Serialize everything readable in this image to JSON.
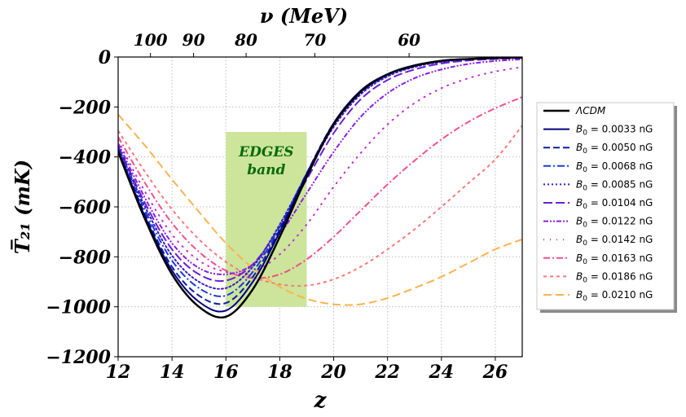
{
  "chart_data": {
    "type": "line",
    "xlabel": "z",
    "ylabel": "T̅₂₁ (mK)",
    "top_xlabel": "ν (MeV)",
    "xlim": [
      12,
      27
    ],
    "ylim": [
      -1200,
      0
    ],
    "xticks": [
      12,
      14,
      16,
      18,
      20,
      22,
      24,
      26
    ],
    "yticks": [
      0,
      -200,
      -400,
      -600,
      -800,
      -1000,
      -1200
    ],
    "ytick_labels": [
      "0",
      "−200",
      "−400",
      "−600",
      "−800",
      "−1000",
      "−1200"
    ],
    "top_ticks": [
      {
        "label": "100",
        "z": 13.2
      },
      {
        "label": "90",
        "z": 14.8
      },
      {
        "label": "80",
        "z": 16.75
      },
      {
        "label": "70",
        "z": 19.3
      },
      {
        "label": "60",
        "z": 22.8
      }
    ],
    "grid": true,
    "legend_position": "right outside",
    "band": {
      "label_line1": "EDGES",
      "label_line2": "band",
      "x_range": [
        16,
        19
      ],
      "y_range": [
        -1000,
        -300
      ],
      "color": "#cce59a",
      "text_color": "#0a6a0a"
    },
    "series": [
      {
        "name": "ΛCDM",
        "label_html": "ΛCDM",
        "color": "#000000",
        "dash": "solid",
        "width": 2.5,
        "x": [
          12,
          13,
          14,
          15,
          16,
          17,
          18,
          19,
          20,
          21,
          22,
          23,
          24,
          25,
          26,
          27
        ],
        "y": [
          -380,
          -650,
          -870,
          -1000,
          -1040,
          -930,
          -720,
          -480,
          -270,
          -140,
          -70,
          -35,
          -15,
          -8,
          -4,
          -2
        ]
      },
      {
        "name": "B0=0.0033 nG",
        "label_pre": "B",
        "label_sub": "0",
        "label_post": " = 0.0033 nG",
        "color": "#000080",
        "dash": "solid",
        "width": 2,
        "x": [
          12,
          13,
          14,
          15,
          16,
          17,
          18,
          19,
          20,
          21,
          22,
          23,
          24,
          25,
          26,
          27
        ],
        "y": [
          -375,
          -640,
          -855,
          -980,
          -1015,
          -900,
          -700,
          -470,
          -265,
          -135,
          -68,
          -33,
          -15,
          -8,
          -4,
          -2
        ]
      },
      {
        "name": "B0=0.0050 nG",
        "label_pre": "B",
        "label_sub": "0",
        "label_post": " = 0.0050 nG",
        "color": "#0b1fa6",
        "dash": "8,4",
        "width": 2,
        "x": [
          12,
          13,
          14,
          15,
          16,
          17,
          18,
          19,
          20,
          21,
          22,
          23,
          24,
          25,
          26,
          27
        ],
        "y": [
          -370,
          -630,
          -840,
          -955,
          -985,
          -880,
          -690,
          -465,
          -265,
          -138,
          -70,
          -35,
          -16,
          -8,
          -4,
          -2
        ]
      },
      {
        "name": "B0=0.0068 nG",
        "label_pre": "B",
        "label_sub": "0",
        "label_post": " = 0.0068 nG",
        "color": "#1a3cd8",
        "dash": "9,3,2,3",
        "width": 2,
        "x": [
          12,
          13,
          14,
          15,
          16,
          17,
          18,
          19,
          20,
          21,
          22,
          23,
          24,
          25,
          26,
          27
        ],
        "y": [
          -365,
          -615,
          -815,
          -925,
          -955,
          -860,
          -680,
          -465,
          -270,
          -143,
          -73,
          -37,
          -18,
          -9,
          -5,
          -2
        ]
      },
      {
        "name": "B0=0.0085 nG",
        "label_pre": "B",
        "label_sub": "0",
        "label_post": " = 0.0085 nG",
        "color": "#3a1cc8",
        "dash": "2,3",
        "width": 2,
        "x": [
          12,
          13,
          14,
          15,
          16,
          17,
          18,
          19,
          20,
          21,
          22,
          23,
          24,
          25,
          26,
          27
        ],
        "y": [
          -360,
          -600,
          -795,
          -900,
          -925,
          -840,
          -670,
          -470,
          -280,
          -150,
          -78,
          -40,
          -20,
          -10,
          -5,
          -3
        ]
      },
      {
        "name": "B0=0.0104 nG",
        "label_pre": "B",
        "label_sub": "0",
        "label_post": " = 0.0104 nG",
        "color": "#6a1fd6",
        "dash": "11,4",
        "width": 2,
        "x": [
          12,
          13,
          14,
          15,
          16,
          17,
          18,
          19,
          20,
          21,
          22,
          23,
          24,
          25,
          26,
          27
        ],
        "y": [
          -355,
          -585,
          -770,
          -870,
          -895,
          -830,
          -680,
          -490,
          -305,
          -170,
          -92,
          -50,
          -26,
          -14,
          -8,
          -4
        ]
      },
      {
        "name": "B0=0.0122 nG",
        "label_pre": "B",
        "label_sub": "0",
        "label_post": " = 0.0122 nG",
        "color": "#8a1ee6",
        "dash": "6,2,2,2,2,2",
        "width": 2,
        "x": [
          12,
          13,
          14,
          15,
          16,
          17,
          18,
          19,
          20,
          21,
          22,
          23,
          24,
          25,
          26,
          27
        ],
        "y": [
          -345,
          -565,
          -745,
          -845,
          -870,
          -830,
          -710,
          -545,
          -380,
          -240,
          -145,
          -85,
          -50,
          -28,
          -16,
          -9
        ]
      },
      {
        "name": "B0=0.0142 nG",
        "label_pre": "B",
        "label_sub": "0",
        "label_post": " = 0.0142 nG",
        "color": "#c02ad8",
        "dash": "1,7",
        "width": 2,
        "x": [
          12,
          13,
          14,
          15,
          16,
          17,
          18,
          19,
          20,
          21,
          22,
          23,
          24,
          25,
          26,
          27
        ],
        "y": [
          -335,
          -540,
          -710,
          -815,
          -860,
          -860,
          -790,
          -670,
          -520,
          -385,
          -270,
          -185,
          -125,
          -85,
          -58,
          -40
        ]
      },
      {
        "name": "B0=0.0163 nG",
        "label_pre": "B",
        "label_sub": "0",
        "label_post": " = 0.0163 nG",
        "color": "#f0508c",
        "dash": "8,3,2,3",
        "width": 2,
        "x": [
          12,
          13,
          14,
          15,
          16,
          17,
          18,
          19,
          20,
          21,
          22,
          23,
          24,
          25,
          26,
          27
        ],
        "y": [
          -320,
          -505,
          -665,
          -780,
          -855,
          -885,
          -870,
          -810,
          -720,
          -615,
          -510,
          -415,
          -330,
          -260,
          -205,
          -160
        ]
      },
      {
        "name": "B0=0.0186 nG",
        "label_pre": "B",
        "label_sub": "0",
        "label_post": " = 0.0186 nG",
        "color": "#f87a7a",
        "dash": "4,4",
        "width": 2,
        "x": [
          12,
          13,
          14,
          15,
          16,
          17,
          18,
          19,
          20,
          21,
          22,
          23,
          24,
          25,
          26,
          27
        ],
        "y": [
          -295,
          -460,
          -610,
          -730,
          -820,
          -880,
          -910,
          -915,
          -890,
          -840,
          -770,
          -690,
          -600,
          -505,
          -410,
          -275
        ]
      },
      {
        "name": "B0=0.0210 nG",
        "label_pre": "B",
        "label_sub": "0",
        "label_post": " = 0.0210 nG",
        "color": "#fdb24f",
        "dash": "10,5",
        "width": 2,
        "x": [
          12,
          13,
          14,
          15,
          16,
          17,
          18,
          19,
          20,
          21,
          22,
          23,
          24,
          25,
          26,
          27
        ],
        "y": [
          -230,
          -355,
          -490,
          -620,
          -745,
          -845,
          -920,
          -968,
          -990,
          -990,
          -965,
          -925,
          -880,
          -825,
          -770,
          -730
        ]
      }
    ]
  }
}
